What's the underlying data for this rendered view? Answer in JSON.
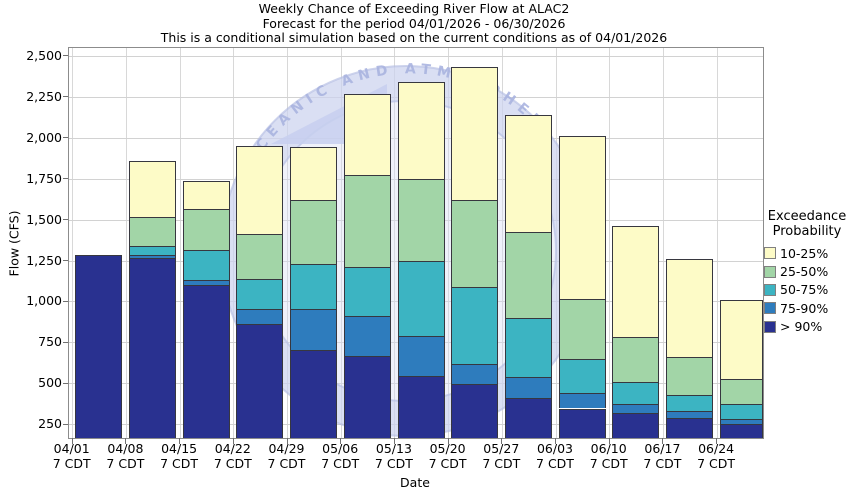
{
  "title": {
    "line1": "Weekly Chance of Exceeding River Flow at ALAC2",
    "line2": "Forecast for the period 04/01/2026 - 06/30/2026",
    "line3": "This is a conditional simulation based on the current conditions as of 04/01/2026"
  },
  "y_axis": {
    "label": "Flow (CFS)"
  },
  "x_axis": {
    "label": "Date",
    "sublabel": "7 CDT"
  },
  "legend": {
    "title_line1": "Exceedance",
    "title_line2": "Probability",
    "items": [
      {
        "label": "10-25%",
        "color": "#fdfbc7"
      },
      {
        "label": "25-50%",
        "color": "#a2d5a7"
      },
      {
        "label": "50-75%",
        "color": "#3cb4c2"
      },
      {
        "label": "75-90%",
        "color": "#2e7cbd"
      },
      {
        "label": "> 90%",
        "color": "#293190"
      }
    ]
  },
  "watermark": {
    "text": "CEANIC AND ATMOSPHERIC",
    "band_color": "#c9d0ec",
    "text_color": "#aab4e0"
  },
  "chart_data": {
    "type": "bar",
    "stacked": true,
    "title": "Weekly Chance of Exceeding River Flow at ALAC2",
    "subtitle": "Forecast for the period 04/01/2026 - 06/30/2026",
    "note": "This is a conditional simulation based on the current conditions as of 04/01/2026",
    "xlabel": "Date",
    "ylabel": "Flow (CFS)",
    "ylim": [
      170,
      2550
    ],
    "yticks": [
      250,
      500,
      750,
      1000,
      1250,
      1500,
      1750,
      2000,
      2250,
      2500
    ],
    "grid": true,
    "legend_position": "right",
    "legend_title": "Exceedance Probability",
    "categories": [
      "04/01",
      "04/08",
      "04/15",
      "04/22",
      "04/29",
      "05/06",
      "05/13",
      "05/20",
      "05/27",
      "06/03",
      "06/10",
      "06/17",
      "06/24"
    ],
    "category_sublabel": "7 CDT",
    "baseline": 170,
    "series_note": "values are cumulative stack tops in CFS, series listed bottom to top",
    "series": [
      {
        "name": "> 90%",
        "color": "#293190",
        "tops": [
          1285,
          1270,
          1105,
          865,
          705,
          670,
          550,
          500,
          415,
          350,
          325,
          295,
          255
        ]
      },
      {
        "name": "75-90%",
        "color": "#2e7cbd",
        "tops": [
          1285,
          1285,
          1135,
          955,
          955,
          915,
          790,
          620,
          540,
          445,
          375,
          335,
          285
        ]
      },
      {
        "name": "50-75%",
        "color": "#3cb4c2",
        "tops": [
          1285,
          1340,
          1320,
          1140,
          1230,
          1215,
          1250,
          1090,
          905,
          655,
          510,
          430,
          375
        ]
      },
      {
        "name": "25-50%",
        "color": "#a2d5a7",
        "tops": [
          1285,
          1520,
          1565,
          1415,
          1620,
          1775,
          1750,
          1620,
          1425,
          1020,
          785,
          665,
          530
        ]
      },
      {
        "name": "10-25%",
        "color": "#fdfbc7",
        "tops": [
          1285,
          1860,
          1740,
          1950,
          1945,
          2270,
          2340,
          2435,
          2140,
          2010,
          1465,
          1265,
          1015
        ]
      }
    ]
  }
}
